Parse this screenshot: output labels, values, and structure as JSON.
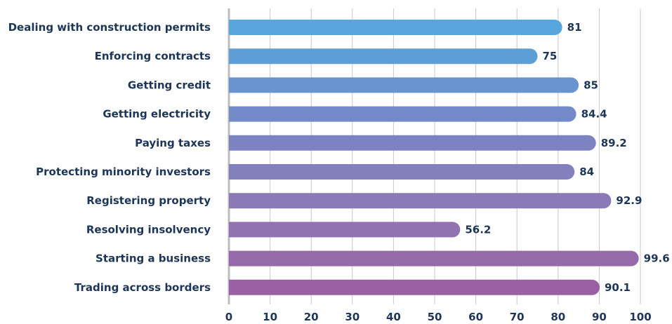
{
  "chart_data": {
    "type": "bar",
    "orientation": "horizontal",
    "categories": [
      "Dealing with construction permits",
      "Enforcing contracts",
      "Getting credit",
      "Getting electricity",
      "Paying taxes",
      "Protecting minority investors",
      "Registering property",
      "Resolving insolvency",
      "Starting a business",
      "Trading across borders"
    ],
    "values": [
      81,
      75,
      85,
      84.4,
      89.2,
      84,
      92.9,
      56.2,
      99.6,
      90.1
    ],
    "value_labels": [
      "81",
      "75",
      "85",
      "84.4",
      "89.2",
      "84",
      "92.9",
      "56.2",
      "99.6",
      "90.1"
    ],
    "xlim": [
      0,
      100
    ],
    "xticks": [
      "0",
      "10",
      "20",
      "30",
      "40",
      "50",
      "60",
      "70",
      "80",
      "90",
      "100"
    ],
    "grid": true,
    "colors": [
      "#58a6dc",
      "#5e9ed7",
      "#6a94d0",
      "#7489c7",
      "#7d83c1",
      "#8480bd",
      "#8c7ab6",
      "#9073b0",
      "#9669aa",
      "#9a5fa4"
    ],
    "title": "",
    "xlabel": "",
    "ylabel": ""
  }
}
